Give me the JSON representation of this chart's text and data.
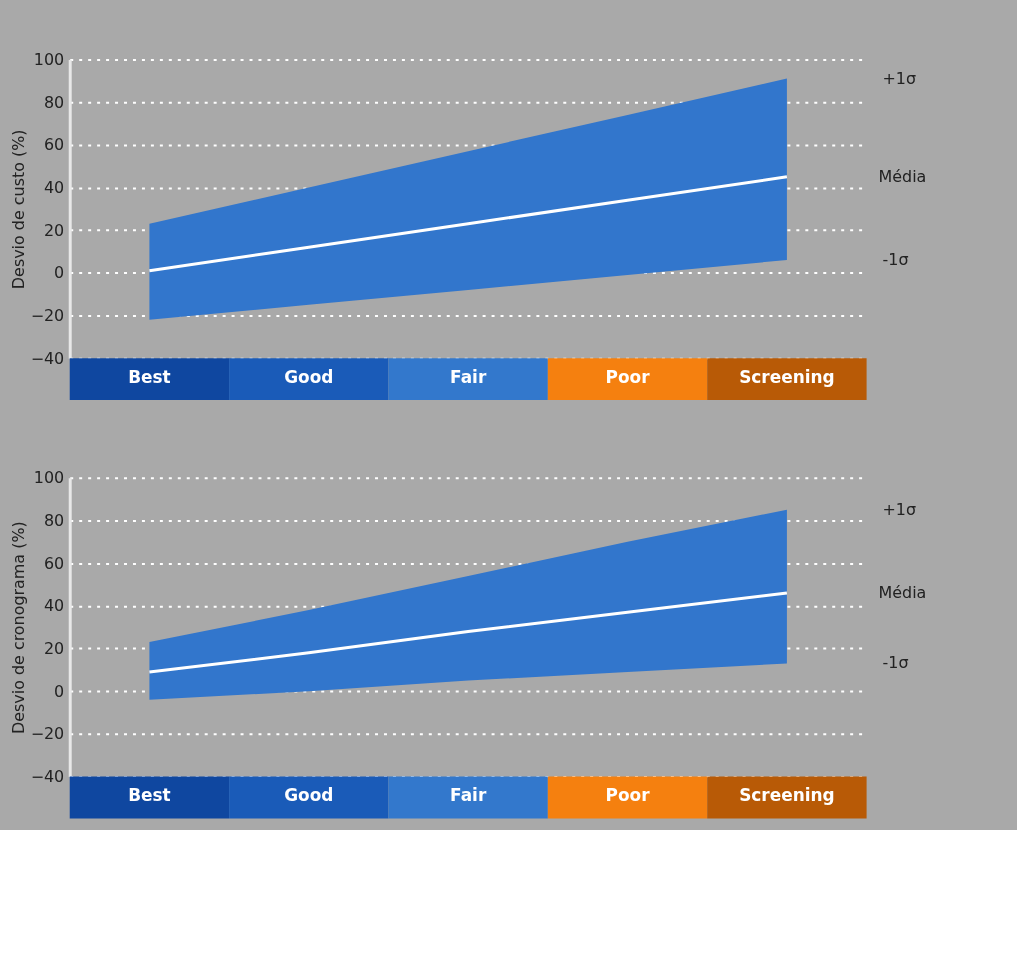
{
  "chart_data": [
    {
      "type": "line",
      "ylabel": "Desvio de custo (%)",
      "categories": [
        "Best",
        "Good",
        "Fair",
        "Poor",
        "Screening"
      ],
      "colors": [
        "#0f47a0",
        "#1a5bb8",
        "#3378cc",
        "#f5800f",
        "#b85a06"
      ],
      "series": [
        {
          "name": "Média",
          "color": "#ffffff",
          "values": [
            1,
            12,
            23,
            34,
            45
          ],
          "lower": [
            -22,
            -15,
            -8,
            -1,
            6
          ],
          "upper": [
            23,
            40,
            57,
            74,
            91
          ]
        }
      ],
      "annotations": [
        "+1σ",
        "-1σ"
      ],
      "ylim": [
        -40,
        100
      ],
      "yticks": [
        -40,
        -20,
        0,
        20,
        40,
        60,
        80,
        100
      ],
      "grid": "y"
    },
    {
      "type": "line",
      "ylabel": "Desvio de cronograma (%)",
      "categories": [
        "Best",
        "Good",
        "Fair",
        "Poor",
        "Screening"
      ],
      "colors": [
        "#0f47a0",
        "#1a5bb8",
        "#3378cc",
        "#f5800f",
        "#b85a06"
      ],
      "series": [
        {
          "name": "Média",
          "color": "#ffffff",
          "values": [
            9,
            18,
            28,
            37,
            46
          ],
          "lower": [
            -4,
            0,
            5,
            9,
            13
          ],
          "upper": [
            23,
            38,
            54,
            70,
            85
          ]
        }
      ],
      "annotations": [
        "+1σ",
        "-1σ"
      ],
      "ylim": [
        -40,
        100
      ],
      "yticks": [
        -40,
        -20,
        0,
        20,
        40,
        60,
        80,
        100
      ],
      "grid": "y"
    }
  ]
}
